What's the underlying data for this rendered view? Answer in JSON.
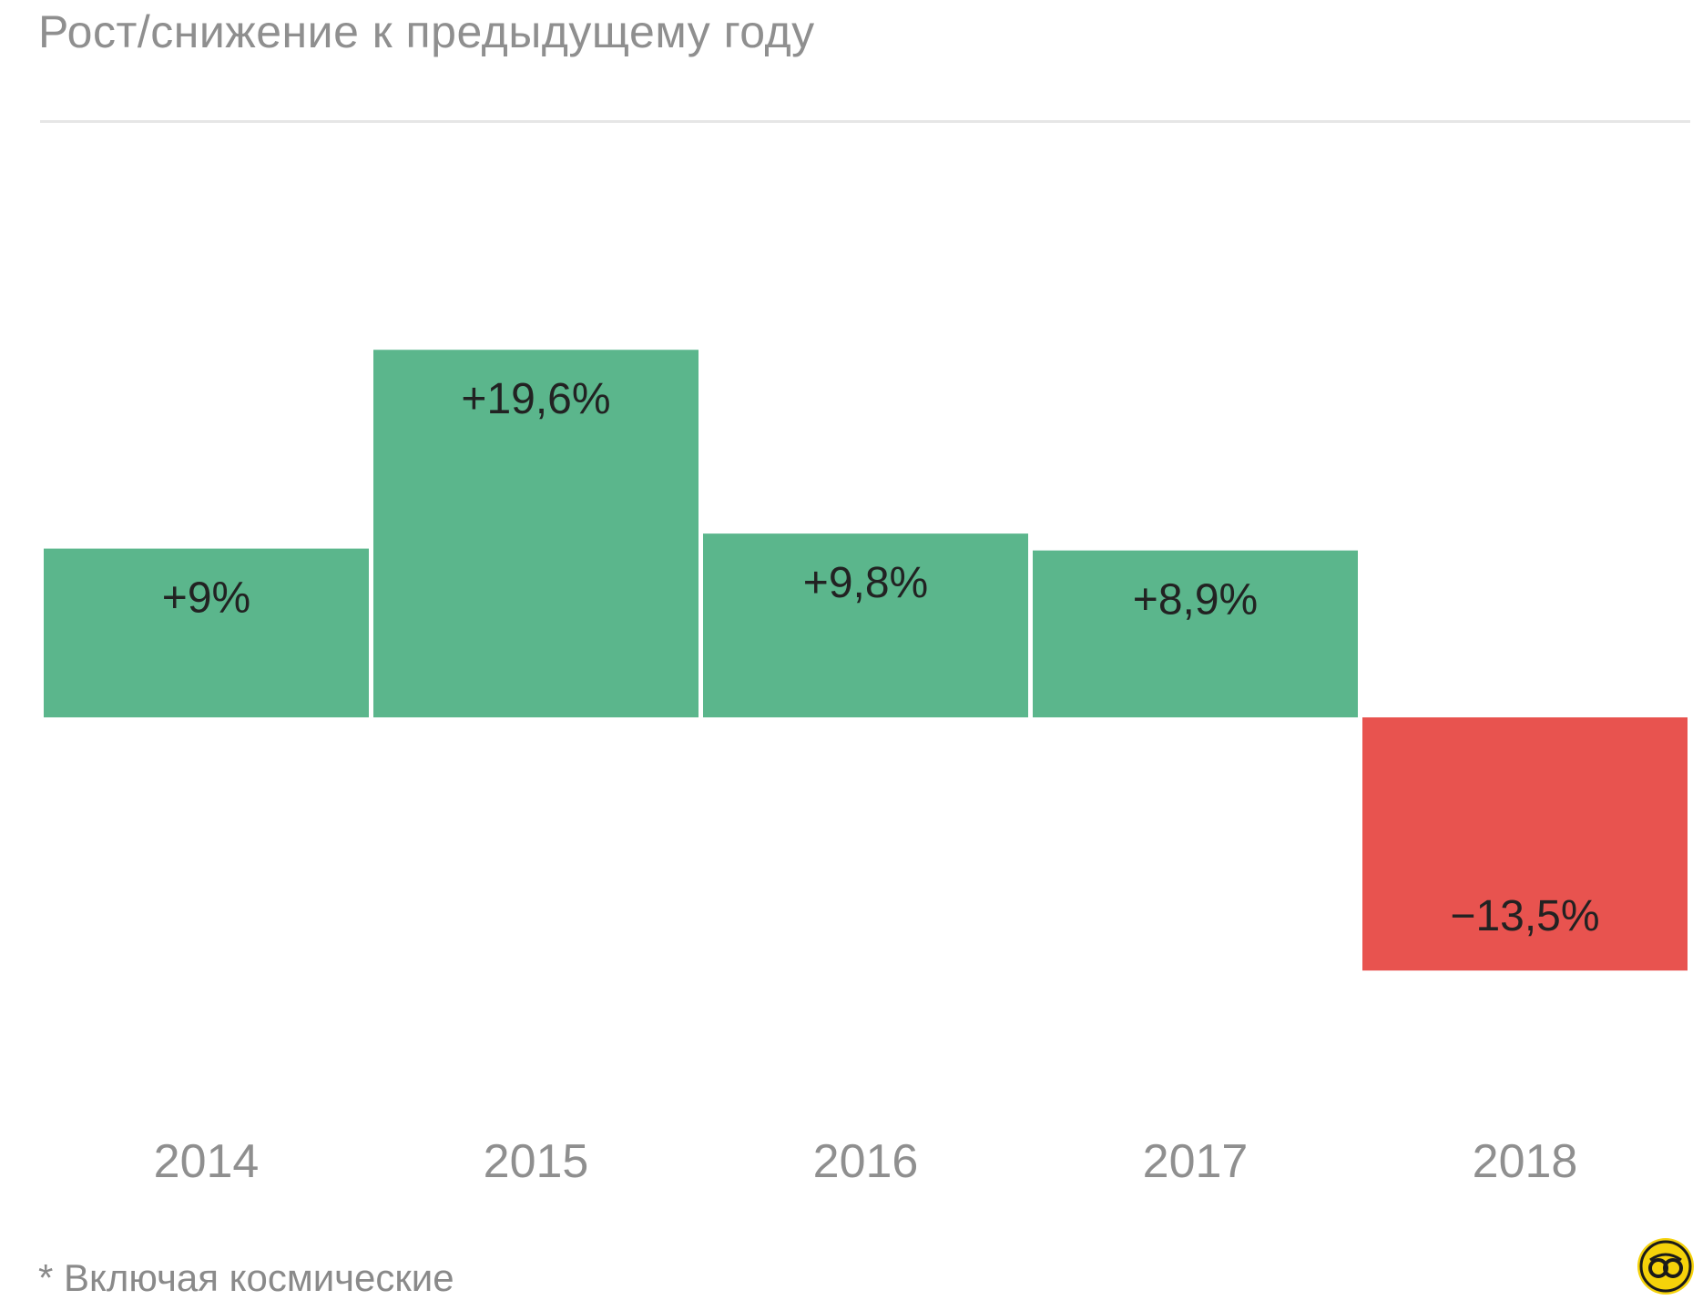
{
  "title": "Рост/снижение к предыдущему году",
  "footnote": "* Включая космические",
  "colors": {
    "positive": "#5bb68c",
    "negative": "#e8534f",
    "label_dark": "#222222",
    "tick_label": "#8f8f8f",
    "logo_fill": "#f5d20a"
  },
  "logo_icon": "circular-loops-logo-icon",
  "chart_data": {
    "type": "bar",
    "categories": [
      "2014",
      "2015",
      "2016",
      "2017",
      "2018"
    ],
    "values": [
      9.0,
      19.6,
      9.8,
      8.9,
      -13.5
    ],
    "data_labels": [
      "+9%",
      "+19,6%",
      "+9,8%",
      "+8,9%",
      "−13,5%"
    ],
    "title": "Рост/снижение к предыдущему году",
    "xlabel": "",
    "ylabel": "",
    "ylim": [
      -13.5,
      19.6
    ],
    "grid": false,
    "legend": "none"
  }
}
